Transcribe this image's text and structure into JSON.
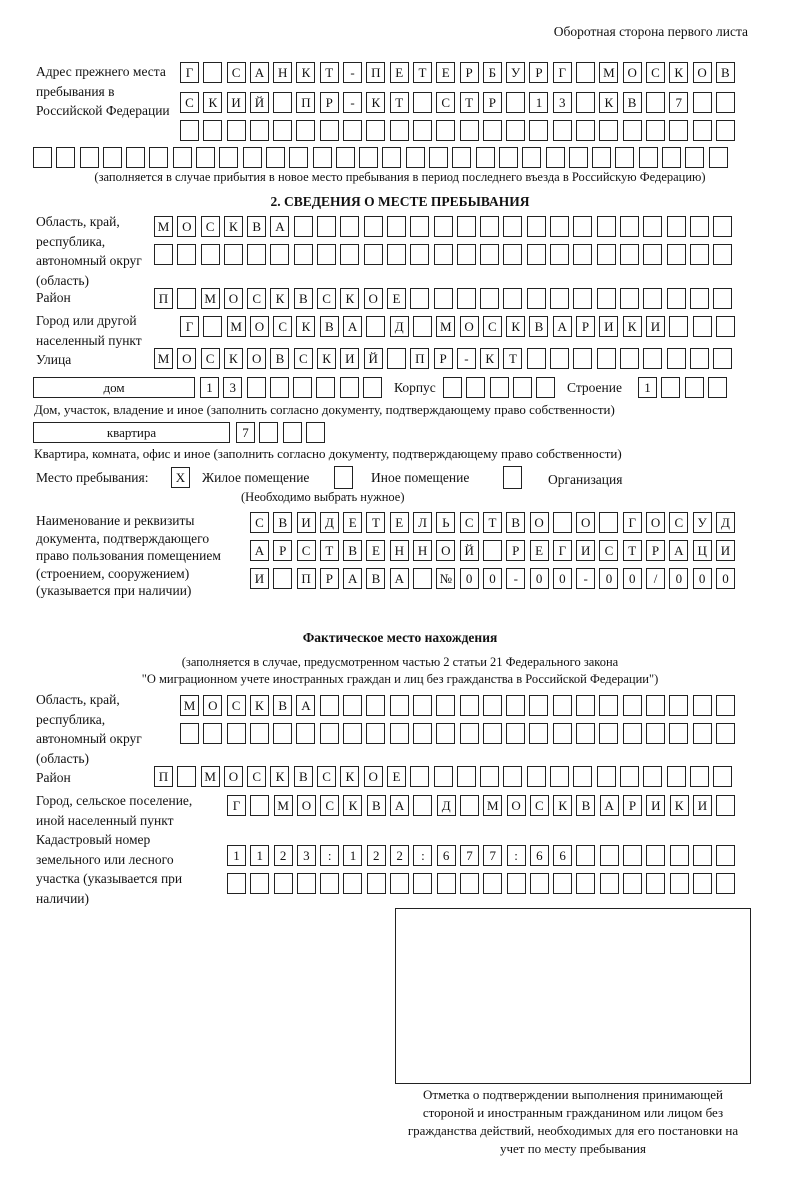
{
  "page_header": "Оборотная сторона первого листа",
  "prev_address": {
    "label": "Адрес прежнего места пребывания в Российской Федерации",
    "rows": [
      [
        "Г",
        "",
        "С",
        "А",
        "Н",
        "К",
        "Т",
        "-",
        "П",
        "Е",
        "Т",
        "Е",
        "Р",
        "Б",
        "У",
        "Р",
        "Г",
        "",
        "М",
        "О",
        "С",
        "К",
        "О",
        "В"
      ],
      [
        "С",
        "К",
        "И",
        "Й",
        "",
        "П",
        "Р",
        "-",
        "К",
        "Т",
        "",
        "С",
        "Т",
        "Р",
        "",
        "1",
        "3",
        "",
        "К",
        "В",
        "",
        "7",
        "",
        ""
      ],
      [
        "",
        "",
        "",
        "",
        "",
        "",
        "",
        "",
        "",
        "",
        "",
        "",
        "",
        "",
        "",
        "",
        "",
        "",
        "",
        "",
        "",
        "",
        "",
        ""
      ],
      [
        "",
        "",
        "",
        "",
        "",
        "",
        "",
        "",
        "",
        "",
        "",
        "",
        "",
        "",
        "",
        "",
        "",
        "",
        "",
        "",
        "",
        "",
        "",
        "",
        "",
        "",
        "",
        "",
        "",
        ""
      ]
    ],
    "note": "(заполняется в случае прибытия в новое место пребывания в период последнего въезда в Российскую Федерацию)"
  },
  "section2": {
    "title": "2. СВЕДЕНИЯ О МЕСТЕ ПРЕБЫВАНИЯ",
    "region_label": "Область, край, республика, автономный округ (область)",
    "region_rows": [
      [
        "М",
        "О",
        "С",
        "К",
        "В",
        "А",
        "",
        "",
        "",
        "",
        "",
        "",
        "",
        "",
        "",
        "",
        "",
        "",
        "",
        "",
        "",
        "",
        "",
        "",
        ""
      ],
      [
        "",
        "",
        "",
        "",
        "",
        "",
        "",
        "",
        "",
        "",
        "",
        "",
        "",
        "",
        "",
        "",
        "",
        "",
        "",
        "",
        "",
        "",
        "",
        "",
        ""
      ]
    ],
    "district_label": "Район",
    "district": [
      "П",
      "",
      "М",
      "О",
      "С",
      "К",
      "В",
      "С",
      "К",
      "О",
      "Е",
      "",
      "",
      "",
      "",
      "",
      "",
      "",
      "",
      "",
      "",
      "",
      "",
      "",
      ""
    ],
    "city_label": "Город или другой населенный пункт",
    "city": [
      "Г",
      "",
      "М",
      "О",
      "С",
      "К",
      "В",
      "А",
      "",
      "Д",
      "",
      "М",
      "О",
      "С",
      "К",
      "В",
      "А",
      "Р",
      "И",
      "К",
      "И",
      "",
      "",
      ""
    ],
    "street_label": "Улица",
    "street": [
      "М",
      "О",
      "С",
      "К",
      "О",
      "В",
      "С",
      "К",
      "И",
      "Й",
      "",
      "П",
      "Р",
      "-",
      "К",
      "Т",
      "",
      "",
      "",
      "",
      "",
      "",
      "",
      "",
      ""
    ],
    "house_type": "дом",
    "house": [
      "1",
      "3",
      "",
      "",
      "",
      "",
      "",
      ""
    ],
    "korpus_label": "Корпус",
    "korpus": [
      "",
      "",
      "",
      "",
      ""
    ],
    "building_label": "Строение",
    "building": [
      "1",
      "",
      "",
      ""
    ],
    "house_note": "Дом, участок, владение и иное (заполнить согласно документу, подтверждающему право собственности)",
    "flat_type": "квартира",
    "flat": [
      "7",
      "",
      "",
      ""
    ],
    "flat_note": "Квартира, комната, офис и иное (заполнить согласно документу, подтверждающему право собственности)",
    "stay_label": "Место пребывания:",
    "stay_options": [
      {
        "mark": "X",
        "label": "Жилое помещение",
        "checked": true
      },
      {
        "mark": "",
        "label": "Иное помещение",
        "checked": false
      },
      {
        "mark": "",
        "label": "Организация",
        "checked": false
      }
    ],
    "stay_note": "(Необходимо выбрать нужное)",
    "doc_label": "Наименование и реквизиты документа, подтверждающего право пользования помещением (строением, сооружением) (указывается при наличии)",
    "doc_rows": [
      [
        "С",
        "В",
        "И",
        "Д",
        "Е",
        "Т",
        "Е",
        "Л",
        "Ь",
        "С",
        "Т",
        "В",
        "О",
        "",
        "О",
        "",
        "Г",
        "О",
        "С",
        "У",
        "Д"
      ],
      [
        "А",
        "Р",
        "С",
        "Т",
        "В",
        "Е",
        "Н",
        "Н",
        "О",
        "Й",
        "",
        "Р",
        "Е",
        "Г",
        "И",
        "С",
        "Т",
        "Р",
        "А",
        "Ц",
        "И"
      ],
      [
        "И",
        "",
        "П",
        "Р",
        "А",
        "В",
        "А",
        "",
        "№",
        "0",
        "0",
        "-",
        "0",
        "0",
        "-",
        "0",
        "0",
        "/",
        "0",
        "0",
        "0"
      ]
    ]
  },
  "actual": {
    "title": "Фактическое место нахождения",
    "note1": "(заполняется в случае, предусмотренном частью 2 статьи 21 Федерального закона",
    "note2": "\"О миграционном учете иностранных граждан и лиц без гражданства в Российской Федерации\")",
    "region_label": "Область, край, республика, автономный округ (область)",
    "region_rows": [
      [
        "М",
        "О",
        "С",
        "К",
        "В",
        "А",
        "",
        "",
        "",
        "",
        "",
        "",
        "",
        "",
        "",
        "",
        "",
        "",
        "",
        "",
        "",
        "",
        "",
        ""
      ],
      [
        "",
        "",
        "",
        "",
        "",
        "",
        "",
        "",
        "",
        "",
        "",
        "",
        "",
        "",
        "",
        "",
        "",
        "",
        "",
        "",
        "",
        "",
        "",
        ""
      ]
    ],
    "district_label": "Район",
    "district": [
      "П",
      "",
      "М",
      "О",
      "С",
      "К",
      "В",
      "С",
      "К",
      "О",
      "Е",
      "",
      "",
      "",
      "",
      "",
      "",
      "",
      "",
      "",
      "",
      "",
      "",
      "",
      ""
    ],
    "city_label": "Город, сельское поселение, иной населенный пункт",
    "city": [
      "Г",
      "",
      "М",
      "О",
      "С",
      "К",
      "В",
      "А",
      "",
      "Д",
      "",
      "М",
      "О",
      "С",
      "К",
      "В",
      "А",
      "Р",
      "И",
      "К",
      "И",
      ""
    ],
    "cadastral_label": "Кадастровый номер земельного или лесного участка (указывается при наличии)",
    "cadastral_rows": [
      [
        "1",
        "1",
        "2",
        "3",
        ":",
        "1",
        "2",
        "2",
        ":",
        "6",
        "7",
        "7",
        ":",
        "6",
        "6",
        "",
        "",
        "",
        "",
        "",
        "",
        ""
      ],
      [
        "",
        "",
        "",
        "",
        "",
        "",
        "",
        "",
        "",
        "",
        "",
        "",
        "",
        "",
        "",
        "",
        "",
        "",
        "",
        "",
        "",
        ""
      ]
    ]
  },
  "confirmation_caption": "Отметка о подтверждении выполнения принимающей стороной и иностранным гражданином или лицом без гражданства действий, необходимых для его постановки на учет по месту пребывания"
}
